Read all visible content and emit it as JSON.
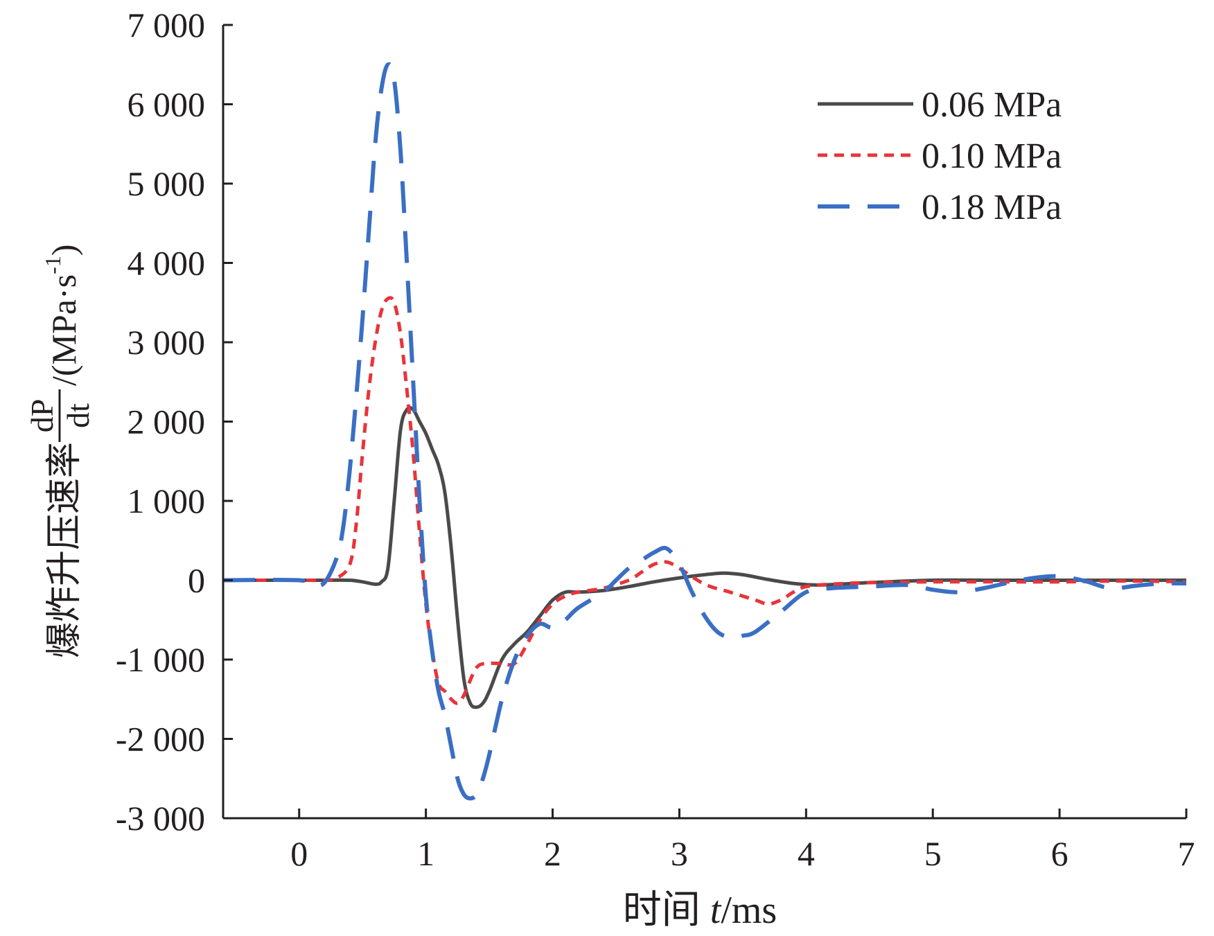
{
  "chart_data": {
    "type": "line",
    "title": "",
    "xlabel": {
      "prefix": "时间 ",
      "variable": "t",
      "unit": "/ms"
    },
    "ylabel": {
      "prefix": "爆炸升压速率",
      "numerator": "dP",
      "denominator": "dt",
      "unit": "/(MPa·s",
      "unit_exponent": "-1",
      "unit_close": ")"
    },
    "xlim": [
      -0.6,
      7.0
    ],
    "ylim": [
      -3000,
      7000
    ],
    "xticks": [
      0,
      1,
      2,
      3,
      4,
      5,
      6,
      7
    ],
    "xtick_labels": [
      "0",
      "1",
      "2",
      "3",
      "4",
      "5",
      "6",
      "7"
    ],
    "yticks": [
      -3000,
      -2000,
      -1000,
      0,
      1000,
      2000,
      3000,
      4000,
      5000,
      6000,
      7000
    ],
    "ytick_labels": [
      "-3 000",
      "-2 000",
      "-1 000",
      "0",
      "1 000",
      "2 000",
      "3 000",
      "4 000",
      "5 000",
      "6 000",
      "7 000"
    ],
    "grid": false,
    "legend_position": "top-right",
    "series": [
      {
        "name": "0.06 MPa",
        "color": "#4a4a4a",
        "style": "solid",
        "x": [
          -0.6,
          0.0,
          0.2,
          0.4,
          0.5,
          0.6,
          0.65,
          0.7,
          0.75,
          0.8,
          0.85,
          0.9,
          0.95,
          1.0,
          1.05,
          1.1,
          1.15,
          1.2,
          1.25,
          1.3,
          1.35,
          1.4,
          1.45,
          1.5,
          1.6,
          1.7,
          1.8,
          1.9,
          2.0,
          2.1,
          2.2,
          2.4,
          2.6,
          2.8,
          3.0,
          3.2,
          3.35,
          3.5,
          3.7,
          3.9,
          4.1,
          4.5,
          5.0,
          5.5,
          6.0,
          6.5,
          7.0
        ],
        "y": [
          0,
          0,
          0,
          0,
          -20,
          -50,
          -20,
          150,
          1000,
          1900,
          2150,
          2150,
          2000,
          1850,
          1650,
          1450,
          1100,
          400,
          -500,
          -1250,
          -1550,
          -1600,
          -1550,
          -1400,
          -1000,
          -800,
          -650,
          -450,
          -250,
          -150,
          -150,
          -130,
          -80,
          -20,
          30,
          70,
          90,
          70,
          10,
          -40,
          -60,
          -30,
          0,
          0,
          0,
          0,
          0
        ]
      },
      {
        "name": "0.10 MPa",
        "color": "#e8343a",
        "style": "dotted",
        "x": [
          -0.6,
          0.0,
          0.2,
          0.3,
          0.4,
          0.45,
          0.5,
          0.55,
          0.6,
          0.65,
          0.7,
          0.75,
          0.8,
          0.85,
          0.9,
          0.95,
          1.0,
          1.05,
          1.1,
          1.15,
          1.2,
          1.25,
          1.3,
          1.4,
          1.5,
          1.6,
          1.7,
          1.8,
          1.9,
          2.0,
          2.1,
          2.2,
          2.4,
          2.6,
          2.7,
          2.8,
          2.9,
          3.0,
          3.2,
          3.4,
          3.6,
          3.7,
          3.8,
          3.9,
          4.0,
          4.2,
          4.5,
          5.0,
          5.5,
          6.0,
          6.5,
          7.0
        ],
        "y": [
          0,
          0,
          0,
          30,
          200,
          700,
          1600,
          2400,
          3000,
          3400,
          3550,
          3500,
          3100,
          2400,
          1600,
          600,
          -300,
          -900,
          -1300,
          -1400,
          -1500,
          -1550,
          -1450,
          -1100,
          -1050,
          -1050,
          -1050,
          -800,
          -500,
          -300,
          -200,
          -150,
          -100,
          0,
          100,
          200,
          230,
          150,
          -50,
          -150,
          -250,
          -300,
          -250,
          -150,
          -80,
          -50,
          -30,
          -20,
          -20,
          -20,
          -10,
          -20
        ]
      },
      {
        "name": "0.18 MPa",
        "color": "#3a6fc4",
        "style": "dashed",
        "x": [
          -0.6,
          0.0,
          0.1,
          0.2,
          0.3,
          0.35,
          0.4,
          0.45,
          0.5,
          0.55,
          0.6,
          0.65,
          0.7,
          0.75,
          0.8,
          0.85,
          0.9,
          0.95,
          1.0,
          1.05,
          1.1,
          1.15,
          1.2,
          1.25,
          1.3,
          1.35,
          1.4,
          1.45,
          1.5,
          1.6,
          1.7,
          1.8,
          1.9,
          2.0,
          2.1,
          2.2,
          2.4,
          2.5,
          2.6,
          2.7,
          2.8,
          2.9,
          3.0,
          3.1,
          3.2,
          3.3,
          3.4,
          3.5,
          3.6,
          3.8,
          4.0,
          4.2,
          4.5,
          4.8,
          5.0,
          5.2,
          5.4,
          5.6,
          5.8,
          6.0,
          6.2,
          6.4,
          6.6,
          6.8,
          7.0
        ],
        "y": [
          0,
          0,
          -60,
          -30,
          300,
          700,
          1400,
          2300,
          3300,
          4400,
          5500,
          6200,
          6500,
          6300,
          5400,
          4000,
          2500,
          1000,
          -200,
          -900,
          -1400,
          -1700,
          -2100,
          -2500,
          -2700,
          -2750,
          -2700,
          -2500,
          -2200,
          -1500,
          -1000,
          -700,
          -550,
          -600,
          -500,
          -350,
          -150,
          0,
          150,
          250,
          350,
          400,
          200,
          -150,
          -450,
          -650,
          -720,
          -700,
          -650,
          -400,
          -150,
          -100,
          -80,
          -60,
          -120,
          -150,
          -100,
          -30,
          30,
          50,
          -10,
          -100,
          -70,
          -40,
          -40
        ]
      }
    ]
  }
}
